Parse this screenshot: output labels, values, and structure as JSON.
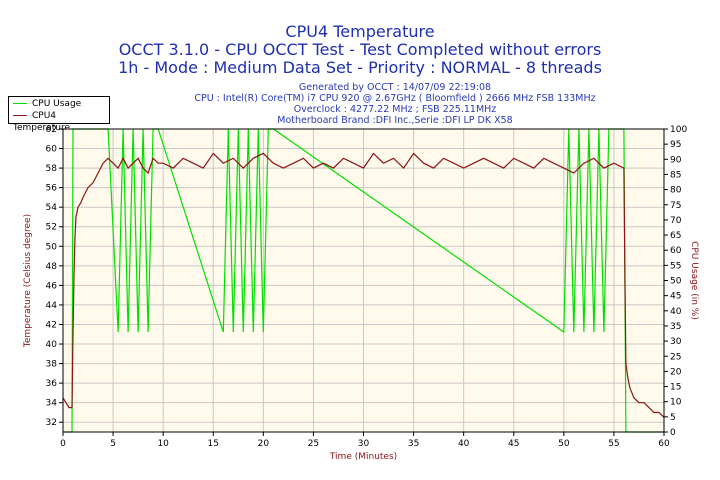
{
  "header": {
    "title": "CPU4 Temperature",
    "line2": "OCCT 3.1.0 - CPU OCCT Test - Test Completed without errors",
    "line3": "1h - Mode : Medium Data Set - Priority : NORMAL - 8 threads"
  },
  "info": {
    "generated": "Generated by OCCT : 14/07/09 22:19:08",
    "cpu": "CPU : Intel(R) Core(TM) i7 CPU 920 @ 2.67GHz ( Bloomfield ) 2666 MHz FSB 133MHz",
    "overclock": "Overclock : 4277.22 MHz ; FSB 225.11MHz",
    "motherboard": "Motherboard Brand :DFI Inc.,Serie :DFI LP DK X58"
  },
  "legend": {
    "usage": "CPU Usage",
    "temp": "CPU4 Temperature"
  },
  "colors": {
    "usage": "#00e000",
    "temp": "#8b1414",
    "plot_bg": "#fffaeb",
    "grid": "#c8c8c8",
    "blue_text": "#1f2fb0"
  },
  "chart_data": {
    "type": "line",
    "title": "CPU4 Temperature",
    "xlabel": "Time (Minutes)",
    "ylabel_left": "Temperature (Celsius degree)",
    "ylabel_right": "CPU Usage (in %)",
    "xlim": [
      0,
      60
    ],
    "ylim_left": [
      31,
      62
    ],
    "ylim_right": [
      0,
      100
    ],
    "x_ticks": [
      0,
      5,
      10,
      15,
      20,
      25,
      30,
      35,
      40,
      45,
      50,
      55,
      60
    ],
    "y_ticks_left": [
      32,
      34,
      36,
      38,
      40,
      42,
      44,
      46,
      48,
      50,
      52,
      54,
      56,
      58,
      60,
      62
    ],
    "y_ticks_right": [
      0,
      5,
      10,
      15,
      20,
      25,
      30,
      35,
      40,
      45,
      50,
      55,
      60,
      65,
      70,
      75,
      80,
      85,
      90,
      95,
      100
    ],
    "grid": true,
    "series": [
      {
        "name": "CPU4 Temperature",
        "axis": "left",
        "x": [
          0,
          0.3,
          0.6,
          0.9,
          1.0,
          1.1,
          1.2,
          1.3,
          1.5,
          1.8,
          2.0,
          2.5,
          3.0,
          3.5,
          4.0,
          4.5,
          5.0,
          5.5,
          6.0,
          6.5,
          7.0,
          7.5,
          8.0,
          8.5,
          9.0,
          9.5,
          10.0,
          11.0,
          12.0,
          13.0,
          14.0,
          15.0,
          16.0,
          17.0,
          18.0,
          19.0,
          20.0,
          21.0,
          22.0,
          23.0,
          24.0,
          25.0,
          26.0,
          27.0,
          28.0,
          29.0,
          30.0,
          31.0,
          32.0,
          33.0,
          34.0,
          35.0,
          36.0,
          37.0,
          38.0,
          39.0,
          40.0,
          41.0,
          42.0,
          43.0,
          44.0,
          45.0,
          46.0,
          47.0,
          48.0,
          49.0,
          50.0,
          51.0,
          52.0,
          53.0,
          54.0,
          55.0,
          56.0,
          56.1,
          56.2,
          56.4,
          56.6,
          57.0,
          57.5,
          58.0,
          58.5,
          59.0,
          59.5,
          60.0
        ],
        "y": [
          34.5,
          34.0,
          33.5,
          33.5,
          41.0,
          47.0,
          51.0,
          53.0,
          54.0,
          54.5,
          55.0,
          56.0,
          56.5,
          57.5,
          58.5,
          59.0,
          58.5,
          58.0,
          59.0,
          58.0,
          58.5,
          59.0,
          58.0,
          57.5,
          59.0,
          58.5,
          58.5,
          58.0,
          59.0,
          58.5,
          58.0,
          59.5,
          58.5,
          59.0,
          58.0,
          59.0,
          59.5,
          58.5,
          58.0,
          58.5,
          59.0,
          58.0,
          58.5,
          58.0,
          59.0,
          58.5,
          58.0,
          59.5,
          58.5,
          59.0,
          58.0,
          59.5,
          58.5,
          58.0,
          59.0,
          58.5,
          58.0,
          58.5,
          59.0,
          58.5,
          58.0,
          59.0,
          58.5,
          58.0,
          59.0,
          58.5,
          58.0,
          57.5,
          58.5,
          59.0,
          58.0,
          58.5,
          58.0,
          47.0,
          38.0,
          36.5,
          35.5,
          34.5,
          34.0,
          34.0,
          33.5,
          33.0,
          33.0,
          32.5
        ]
      },
      {
        "name": "CPU Usage",
        "axis": "right",
        "x": [
          0,
          0.9,
          1.0,
          4.5,
          5.5,
          6.0,
          6.5,
          7.0,
          7.5,
          8.0,
          8.5,
          9.0,
          9.5,
          16.0,
          16.5,
          17.0,
          17.5,
          18.0,
          18.5,
          19.0,
          19.5,
          20.0,
          20.5,
          21.0,
          50.0,
          50.5,
          51.0,
          51.5,
          52.0,
          52.5,
          53.0,
          53.5,
          54.0,
          54.5,
          55.0,
          56.0,
          56.2,
          60.0
        ],
        "y": [
          0,
          0,
          100,
          100,
          33,
          100,
          33,
          100,
          33,
          100,
          33,
          100,
          100,
          33,
          100,
          33,
          100,
          33,
          100,
          33,
          100,
          33,
          100,
          100,
          33,
          100,
          33,
          100,
          33,
          100,
          33,
          100,
          33,
          100,
          100,
          100,
          0,
          0
        ]
      }
    ]
  }
}
